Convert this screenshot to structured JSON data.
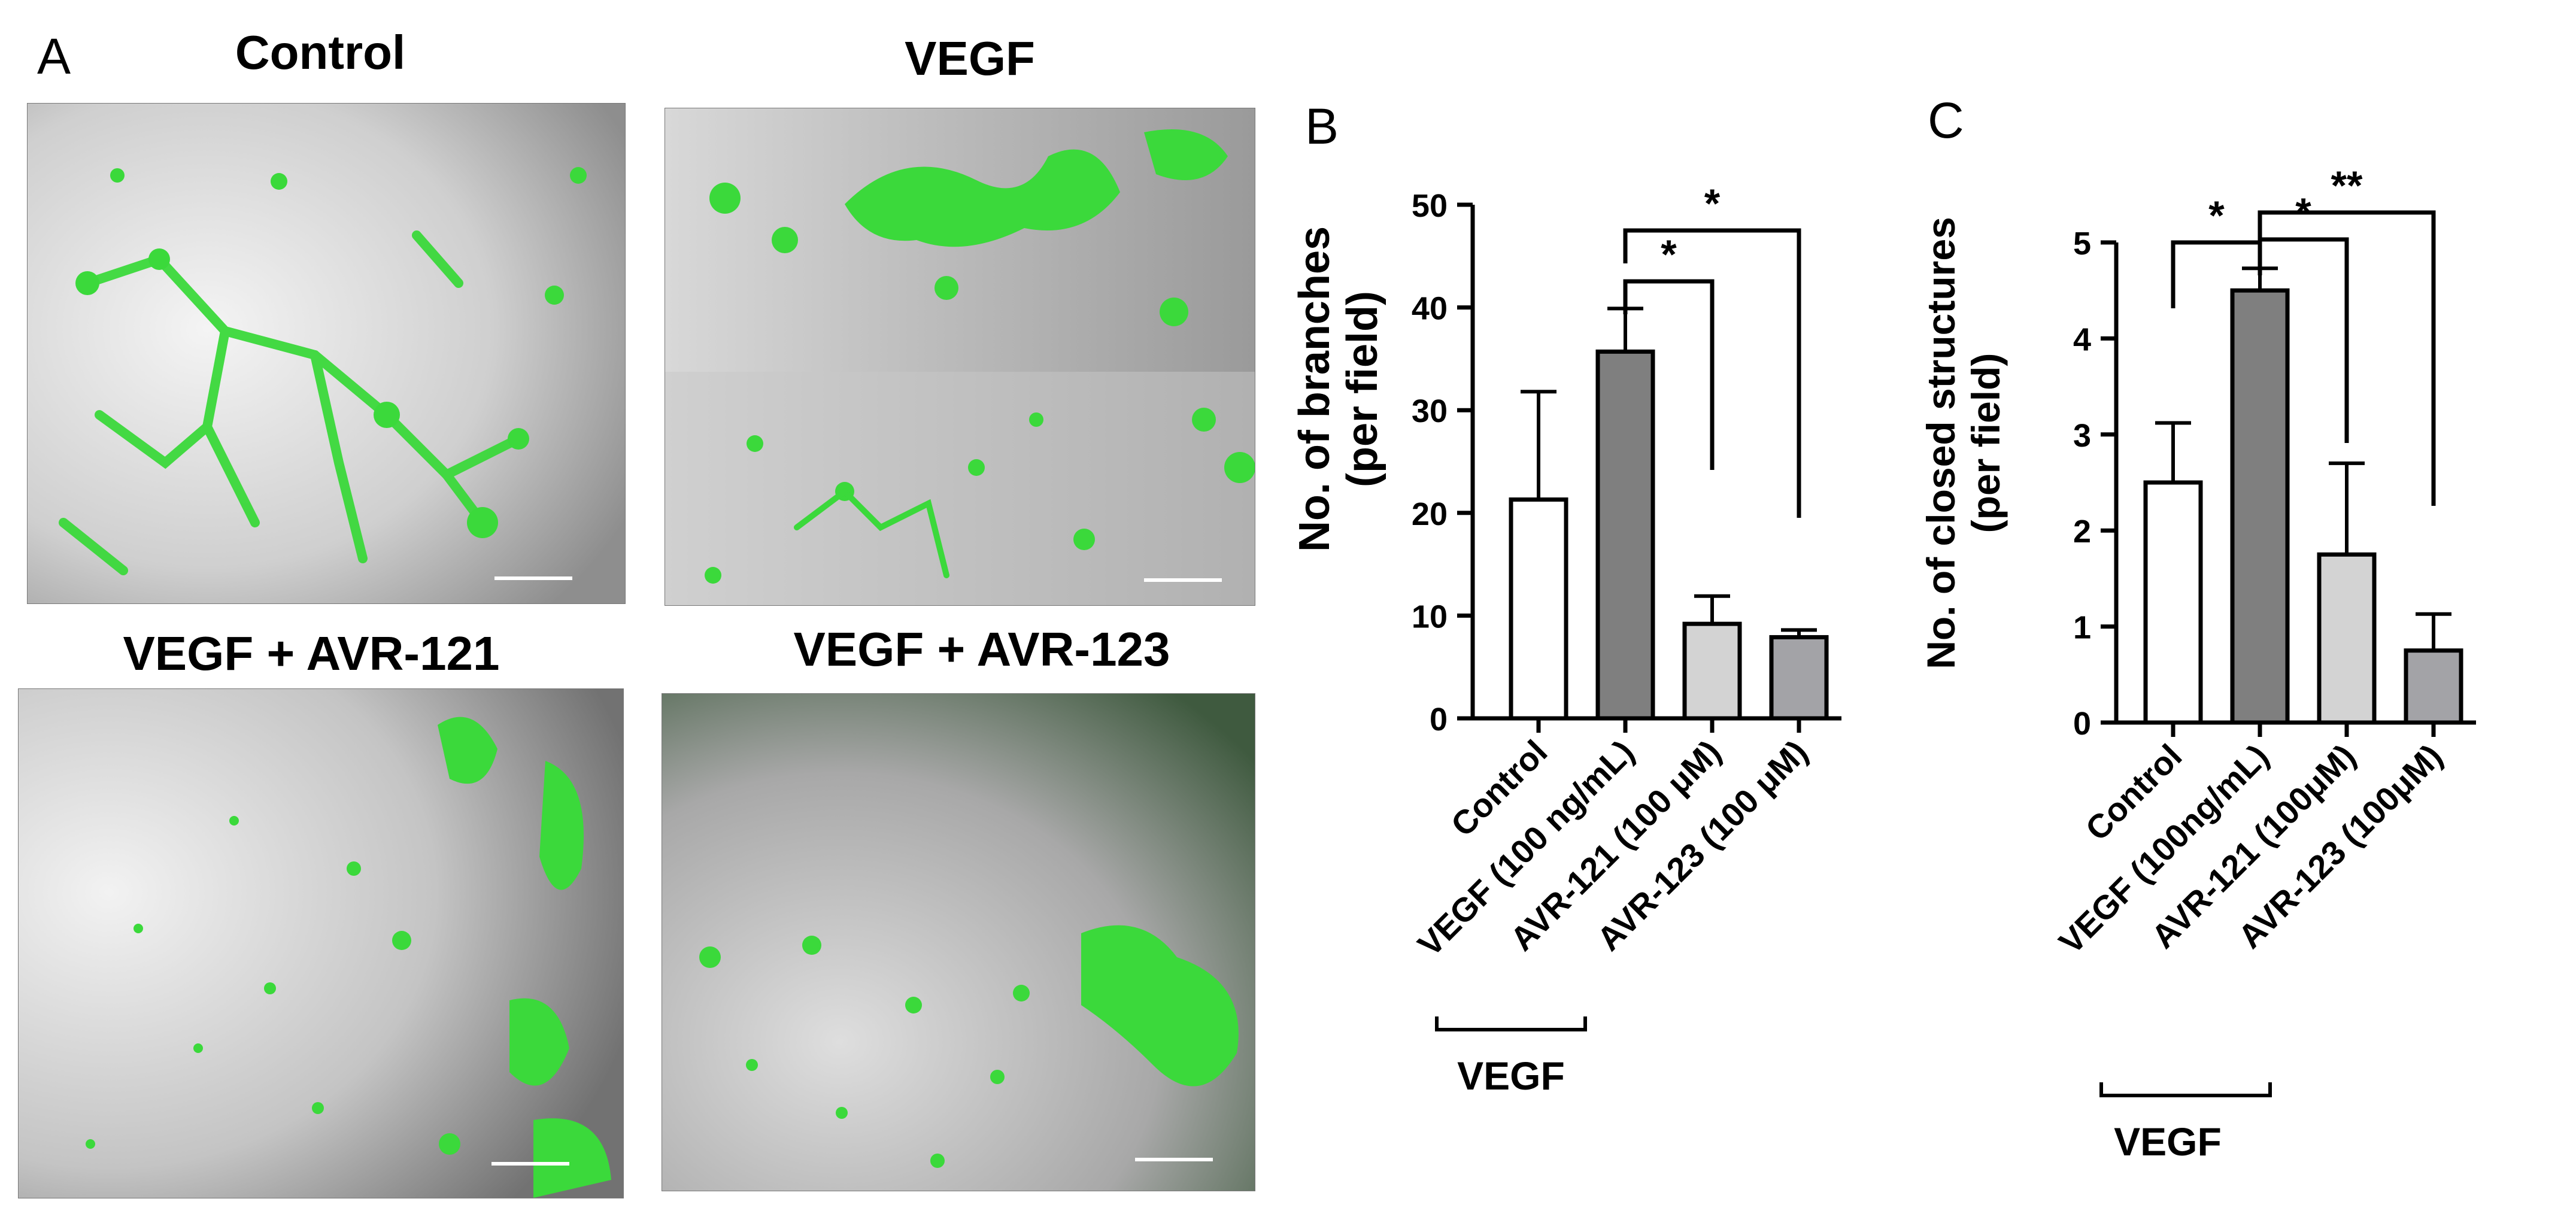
{
  "panel_a": {
    "letter": "A",
    "images": [
      {
        "title": "Control"
      },
      {
        "title": "VEGF"
      },
      {
        "title": "VEGF + AVR-121"
      },
      {
        "title": "VEGF + AVR-123"
      }
    ]
  },
  "chart_data": [
    {
      "panel": "B",
      "type": "bar",
      "ylabel_line1": "No. of branches",
      "ylabel_line2": "(per field)",
      "ylim": [
        0,
        50
      ],
      "yticks": [
        0,
        10,
        20,
        30,
        40,
        50
      ],
      "categories": [
        "Control",
        "VEGF (100 ng/mL)",
        "AVR-121 (100 μM)",
        "AVR-123 (100 μM)"
      ],
      "values": [
        21.3,
        35.7,
        9.2,
        7.9
      ],
      "errors": [
        10.5,
        4.2,
        2.7,
        0.7
      ],
      "colors": [
        "#ffffff",
        "#7f7f7f",
        "#d3d3d3",
        "#a3a3a7"
      ],
      "bracket_label": "VEGF",
      "significance": [
        {
          "from": 1,
          "to": 2,
          "label": "*"
        },
        {
          "from": 1,
          "to": 3,
          "label": "*"
        }
      ]
    },
    {
      "panel": "C",
      "type": "bar",
      "ylabel_line1": "No. of closed structures",
      "ylabel_line2": "(per field)",
      "ylim": [
        0,
        5
      ],
      "yticks": [
        0,
        1,
        2,
        3,
        4,
        5
      ],
      "categories": [
        "Control",
        "VEGF (100ng/mL)",
        "AVR-121 (100μM)",
        "AVR-123 (100μM)"
      ],
      "values": [
        2.5,
        4.5,
        1.75,
        0.75
      ],
      "errors": [
        0.62,
        0.23,
        0.95,
        0.38
      ],
      "colors": [
        "#ffffff",
        "#7f7f7f",
        "#d3d3d3",
        "#a3a3a7"
      ],
      "bracket_label": "VEGF",
      "significance": [
        {
          "from": 0,
          "to": 1,
          "label": "*"
        },
        {
          "from": 1,
          "to": 2,
          "label": "*"
        },
        {
          "from": 1,
          "to": 3,
          "label": "**"
        }
      ]
    }
  ]
}
